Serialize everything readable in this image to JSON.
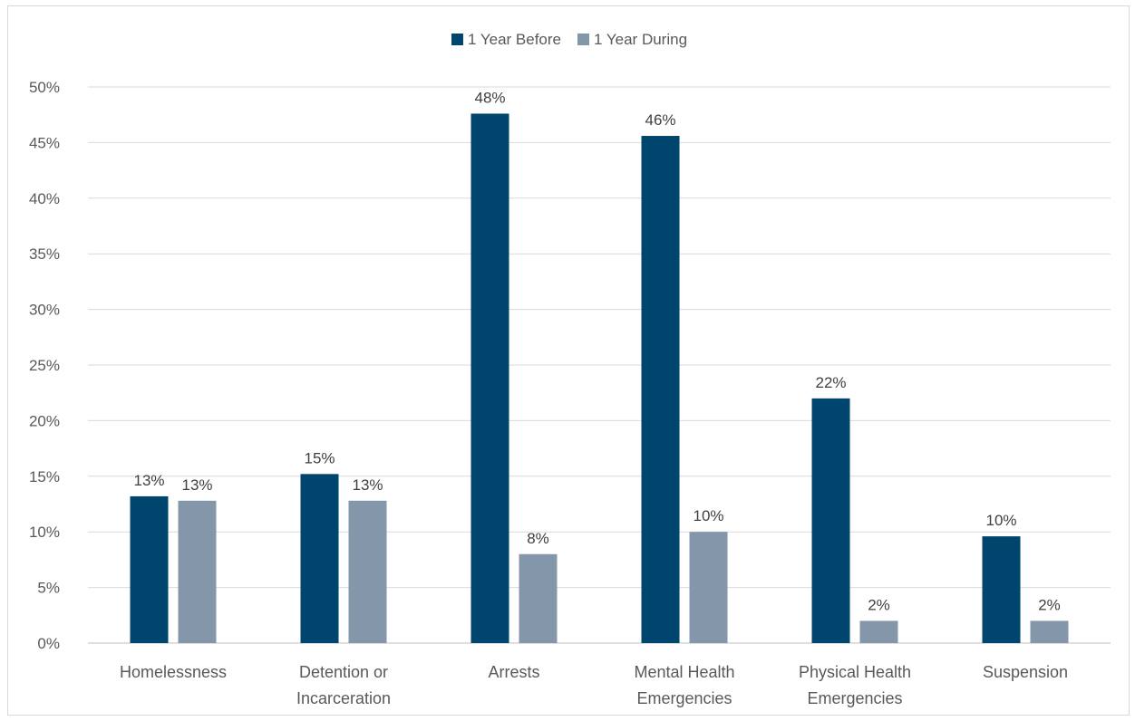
{
  "chart_data": {
    "type": "bar",
    "title": "",
    "xlabel": "",
    "ylabel": "",
    "ylim": [
      0,
      0.5
    ],
    "y_ticks": [
      "0%",
      "5%",
      "10%",
      "15%",
      "20%",
      "25%",
      "30%",
      "35%",
      "40%",
      "45%",
      "50%"
    ],
    "grid": true,
    "legend_position": "top-center",
    "categories": [
      [
        "Homelessness"
      ],
      [
        "Detention or",
        "Incarceration"
      ],
      [
        "Arrests"
      ],
      [
        "Mental Health",
        "Emergencies"
      ],
      [
        "Physical Health",
        "Emergencies"
      ],
      [
        "Suspension"
      ]
    ],
    "series": [
      {
        "name": "1 Year Before",
        "color": "#00456e",
        "values": [
          0.132,
          0.152,
          0.476,
          0.456,
          0.22,
          0.096
        ],
        "labels": [
          "13%",
          "15%",
          "48%",
          "46%",
          "22%",
          "10%"
        ]
      },
      {
        "name": "1 Year During",
        "color": "#8496aa",
        "values": [
          0.128,
          0.128,
          0.08,
          0.1,
          0.02,
          0.02
        ],
        "labels": [
          "13%",
          "13%",
          "8%",
          "10%",
          "2%",
          "2%"
        ]
      }
    ]
  }
}
